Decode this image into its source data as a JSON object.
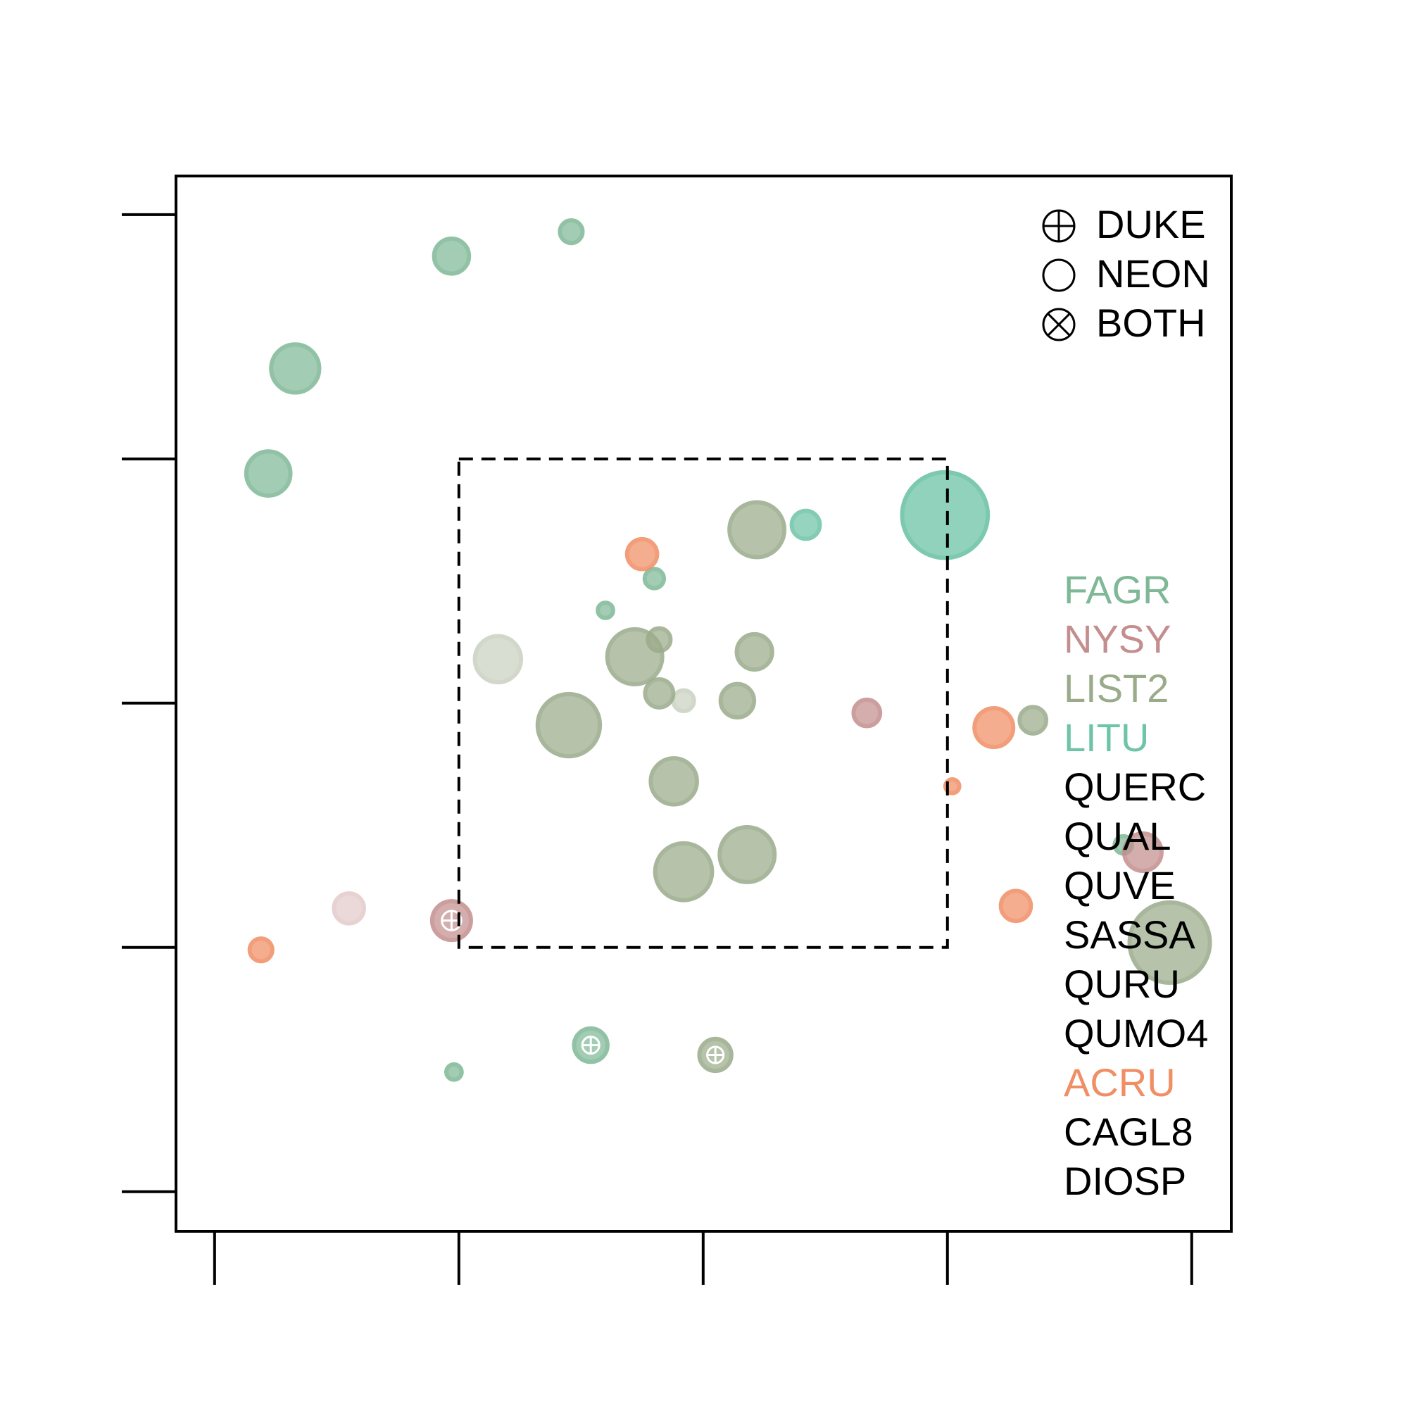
{
  "chart_data": {
    "type": "scatter",
    "xlim": [
      -1.58,
      41.62
    ],
    "ylim": [
      -1.62,
      41.58
    ],
    "xticks": [
      0,
      10,
      20,
      30,
      40
    ],
    "yticks": [
      0,
      10,
      20,
      30,
      40
    ],
    "region": {
      "x": [
        10,
        30
      ],
      "y": [
        10,
        30
      ]
    },
    "legend": "right",
    "source_legend": [
      "DUKE",
      "NEON",
      "BOTH"
    ],
    "series": [
      {
        "name": "FAGR",
        "color": "#7fb896",
        "x": [
          9.7,
          14.6,
          3.3,
          2.2,
          18.0,
          16.0,
          15.4,
          9.8,
          37.2
        ],
        "y": [
          38.3,
          39.3,
          33.7,
          29.4,
          25.1,
          23.8,
          6.0,
          4.9,
          14.2
        ],
        "sizes": [
          0.8,
          0.55,
          1.07,
          0.99,
          0.48,
          0.4,
          0.77,
          0.4,
          0.44
        ],
        "sources": [
          "NEON",
          "NEON",
          "NEON",
          "NEON",
          "NEON",
          "NEON",
          "DUKE",
          "NEON",
          "NEON"
        ],
        "alpha": [
          0.85,
          0.85,
          0.85,
          0.85,
          0.85,
          0.85,
          0.85,
          0.85,
          0.85
        ]
      },
      {
        "name": "NYSY",
        "color": "#c48e8e",
        "x": [
          26.7,
          38.0,
          9.7,
          5.5
        ],
        "y": [
          19.6,
          13.9,
          11.1,
          11.6
        ],
        "sizes": [
          0.63,
          0.85,
          0.88,
          0.7
        ],
        "sources": [
          "NEON",
          "NEON",
          "DUKE",
          "NEON"
        ],
        "alpha": [
          0.85,
          0.85,
          0.85,
          0.4
        ]
      },
      {
        "name": "LIST2",
        "color": "#9aab8a",
        "x": [
          22.2,
          17.2,
          18.2,
          22.1,
          18.2,
          21.4,
          14.5,
          18.8,
          19.2,
          21.8,
          33.5,
          39.1,
          20.5,
          11.6,
          19.2
        ],
        "y": [
          27.1,
          21.9,
          22.6,
          22.1,
          20.4,
          20.1,
          19.1,
          16.8,
          13.1,
          13.8,
          19.3,
          10.2,
          5.6,
          21.8,
          20.1
        ],
        "sizes": [
          1.21,
          1.21,
          0.55,
          0.81,
          0.66,
          0.77,
          1.36,
          1.03,
          1.25,
          1.21,
          0.63,
          1.73,
          0.74,
          1.03,
          0.51
        ],
        "sources": [
          "NEON",
          "NEON",
          "NEON",
          "NEON",
          "NEON",
          "NEON",
          "NEON",
          "NEON",
          "NEON",
          "NEON",
          "NEON",
          "NEON",
          "DUKE",
          "NEON",
          "NEON"
        ],
        "alpha": [
          0.85,
          0.85,
          0.85,
          0.85,
          0.85,
          0.85,
          0.85,
          0.85,
          0.85,
          0.85,
          0.85,
          0.85,
          0.85,
          0.45,
          0.45
        ]
      },
      {
        "name": "LITU",
        "color": "#6ec4a7",
        "x": [
          29.9,
          24.2
        ],
        "y": [
          27.7,
          27.3
        ],
        "sizes": [
          1.84,
          0.66
        ],
        "sources": [
          "NEON",
          "NEON"
        ],
        "alpha": [
          0.9,
          0.85
        ]
      },
      {
        "name": "QUERC",
        "color": "#000000",
        "x": [],
        "y": [],
        "sizes": [],
        "sources": [],
        "alpha": []
      },
      {
        "name": "QUAL",
        "color": "#000000",
        "x": [],
        "y": [],
        "sizes": [],
        "sources": [],
        "alpha": []
      },
      {
        "name": "QUVE",
        "color": "#000000",
        "x": [],
        "y": [],
        "sizes": [],
        "sources": [],
        "alpha": []
      },
      {
        "name": "SASSA",
        "color": "#000000",
        "x": [],
        "y": [],
        "sizes": [],
        "sources": [],
        "alpha": []
      },
      {
        "name": "QURU",
        "color": "#000000",
        "x": [],
        "y": [],
        "sizes": [],
        "sources": [],
        "alpha": []
      },
      {
        "name": "QUMO4",
        "color": "#000000",
        "x": [],
        "y": [],
        "sizes": [],
        "sources": [],
        "alpha": []
      },
      {
        "name": "ACRU",
        "color": "#f08e64",
        "x": [
          17.5,
          31.9,
          30.2,
          32.8,
          1.9
        ],
        "y": [
          26.1,
          19.0,
          16.6,
          11.7,
          9.9
        ],
        "sizes": [
          0.7,
          0.88,
          0.37,
          0.7,
          0.55
        ],
        "sources": [
          "NEON",
          "NEON",
          "NEON",
          "NEON",
          "NEON"
        ],
        "alpha": [
          0.85,
          0.85,
          0.85,
          0.85,
          0.85
        ]
      },
      {
        "name": "CAGL8",
        "color": "#000000",
        "x": [],
        "y": [],
        "sizes": [],
        "sources": [],
        "alpha": []
      },
      {
        "name": "DIOSP",
        "color": "#000000",
        "x": [],
        "y": [],
        "sizes": [],
        "sources": [],
        "alpha": []
      }
    ]
  }
}
